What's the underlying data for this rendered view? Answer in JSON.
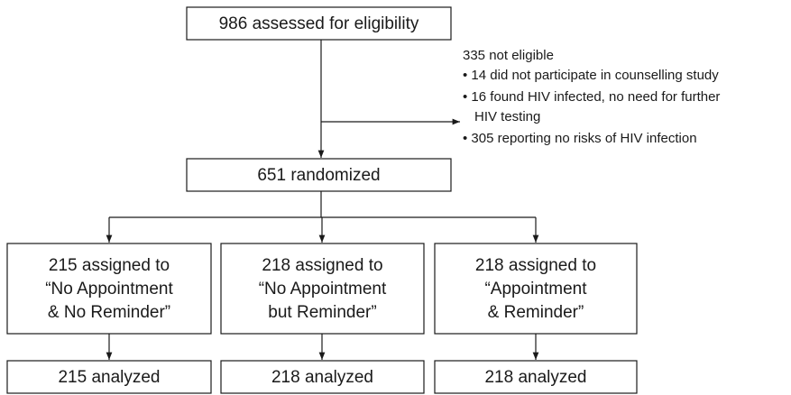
{
  "nodes": [
    {
      "lines": [
        "986 assessed for eligibility"
      ]
    },
    {
      "lines": [
        "651 randomized"
      ]
    },
    {
      "lines": [
        "215 assigned to",
        "“No Appointment",
        "& No Reminder”"
      ]
    },
    {
      "lines": [
        "218 assigned to",
        "“No Appointment",
        "but Reminder”"
      ]
    },
    {
      "lines": [
        "218 assigned to",
        "“Appointment",
        "& Reminder”"
      ]
    },
    {
      "lines": [
        "215 analyzed"
      ]
    },
    {
      "lines": [
        "218 analyzed"
      ]
    },
    {
      "lines": [
        "218 analyzed"
      ]
    }
  ],
  "exclusion": {
    "title": "335 not eligible",
    "items": [
      [
        "• 14 did not participate in counselling study"
      ],
      [
        "• 16 found HIV infected, no need for further",
        "HIV testing"
      ],
      [
        "• 305 reporting no risks of HIV infection"
      ]
    ]
  }
}
